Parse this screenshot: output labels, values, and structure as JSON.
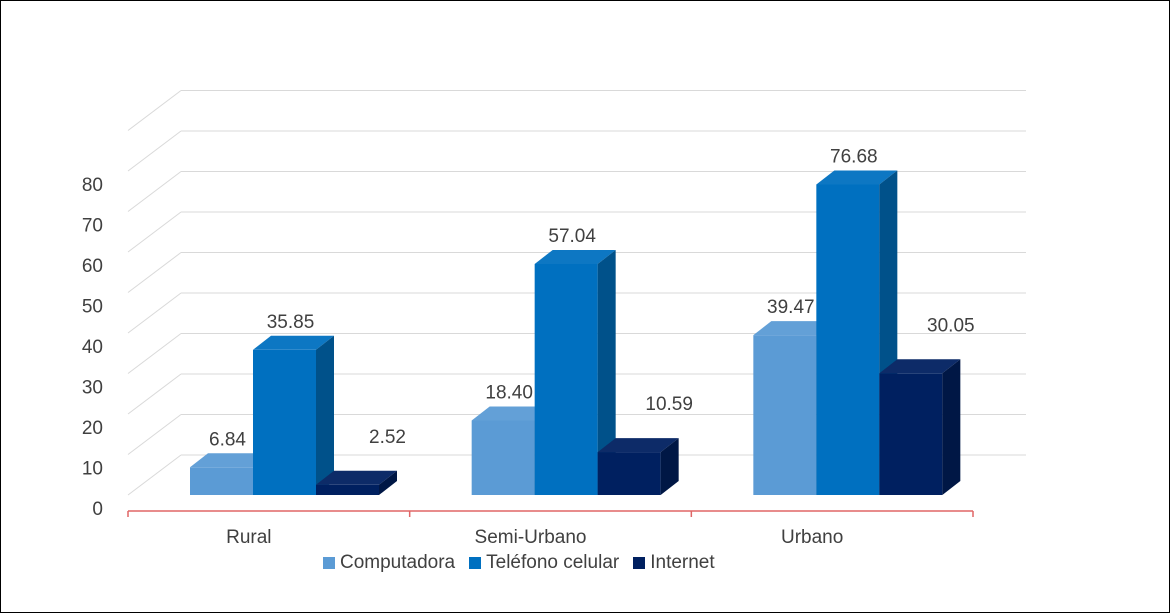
{
  "chart_data": {
    "type": "bar",
    "categories": [
      "Rural",
      "Semi-Urbano",
      "Urbano"
    ],
    "series": [
      {
        "name": "Computadora",
        "values": [
          6.84,
          18.4,
          39.47
        ],
        "labels": [
          "6.84",
          "18.40",
          "39.47"
        ],
        "color": "#5B9BD5"
      },
      {
        "name": "Teléfono celular",
        "values": [
          35.85,
          57.04,
          76.68
        ],
        "labels": [
          "35.85",
          "57.04",
          "76.68"
        ],
        "color": "#0070C0"
      },
      {
        "name": "Internet",
        "values": [
          2.52,
          10.59,
          30.05
        ],
        "labels": [
          "2.52",
          "10.59",
          "30.05"
        ],
        "color": "#002060"
      }
    ],
    "yticks": [
      "0",
      "10",
      "20",
      "30",
      "40",
      "50",
      "60",
      "70",
      "80"
    ],
    "ylim": [
      0,
      90
    ],
    "grid": true,
    "style": "3d-clustered-column",
    "legend": "bottom",
    "title": "",
    "xlabel": "",
    "ylabel": ""
  }
}
